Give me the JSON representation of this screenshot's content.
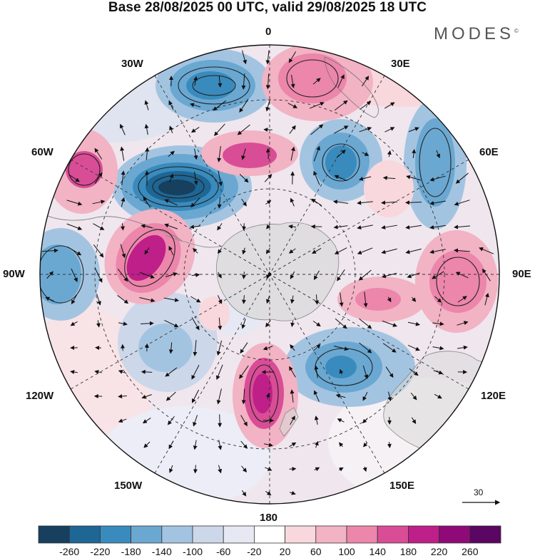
{
  "title": "Base 28/08/2025 00 UTC, valid 29/08/2025 18 UTC",
  "brand": "MODES",
  "brand_mark": "©",
  "longitude_labels": {
    "lon_0": "0",
    "lon_30e": "30E",
    "lon_60e": "60E",
    "lon_90e": "90E",
    "lon_120e": "120E",
    "lon_150e": "150E",
    "lon_180": "180",
    "lon_150w": "150W",
    "lon_120w": "120W",
    "lon_90w": "90W",
    "lon_60w": "60W",
    "lon_30w": "30W"
  },
  "reference_vector": {
    "label": "30"
  },
  "colorbar": {
    "ticks": [
      "-260",
      "-220",
      "-180",
      "-140",
      "-100",
      "-60",
      "-20",
      "20",
      "60",
      "100",
      "140",
      "180",
      "220",
      "260"
    ],
    "colors": [
      "#16405e",
      "#1e6694",
      "#3a8bbd",
      "#6aa8d2",
      "#a3c4e1",
      "#ccd7ea",
      "#e6e8f4",
      "#ffffff",
      "#f8d8dd",
      "#f2b3c4",
      "#ec86ab",
      "#d94d96",
      "#bf1f88",
      "#8f0a78",
      "#5a0662"
    ]
  },
  "icons": {
    "north_arrow": "none",
    "wind_vectors": "arrow-glyphs"
  }
}
